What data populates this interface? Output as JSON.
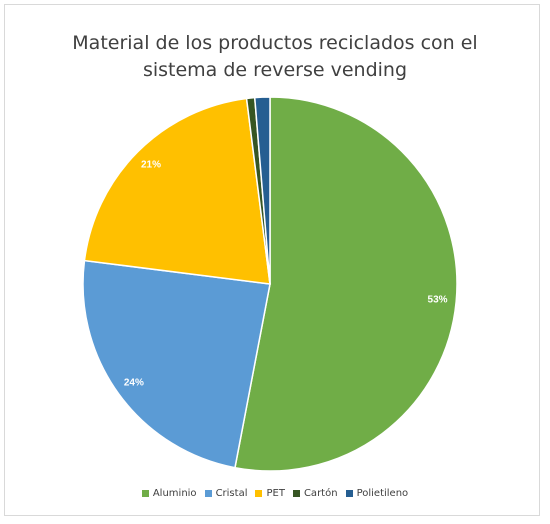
{
  "chart_data": {
    "type": "pie",
    "title_lines": [
      "Material de los productos reciclados con el",
      "sistema de reverse vending"
    ],
    "slices": [
      {
        "name": "Aluminio",
        "value": 53,
        "label": "53%",
        "color": "#70ad47"
      },
      {
        "name": "Cristal",
        "value": 24,
        "label": "24%",
        "color": "#5b9bd5"
      },
      {
        "name": "PET",
        "value": 21,
        "label": "21%",
        "color": "#ffc000"
      },
      {
        "name": "Cartón",
        "value": 0.7,
        "label": "",
        "color": "#375623"
      },
      {
        "name": "Polietileno",
        "value": 1.3,
        "label": "",
        "color": "#255e91"
      }
    ],
    "legend_position": "bottom"
  }
}
